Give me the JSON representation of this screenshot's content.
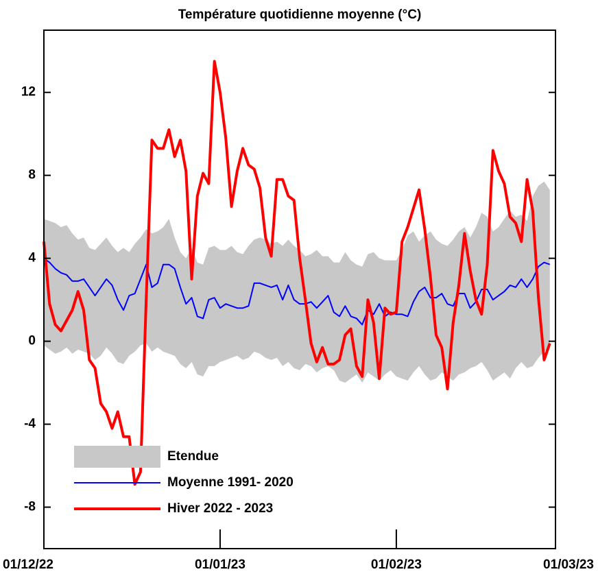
{
  "chart_data": {
    "type": "line",
    "title": "Température quotidienne moyenne (°C)",
    "x": [
      "01/12/22",
      "02/12/22",
      "03/12/22",
      "04/12/22",
      "05/12/22",
      "06/12/22",
      "07/12/22",
      "08/12/22",
      "09/12/22",
      "10/12/22",
      "11/12/22",
      "12/12/22",
      "13/12/22",
      "14/12/22",
      "15/12/22",
      "16/12/22",
      "17/12/22",
      "18/12/22",
      "19/12/22",
      "20/12/22",
      "21/12/22",
      "22/12/22",
      "23/12/22",
      "24/12/22",
      "25/12/22",
      "26/12/22",
      "27/12/22",
      "28/12/22",
      "29/12/22",
      "30/12/22",
      "31/12/22",
      "01/01/23",
      "02/01/23",
      "03/01/23",
      "04/01/23",
      "05/01/23",
      "06/01/23",
      "07/01/23",
      "08/01/23",
      "09/01/23",
      "10/01/23",
      "11/01/23",
      "12/01/23",
      "13/01/23",
      "14/01/23",
      "15/01/23",
      "16/01/23",
      "17/01/23",
      "18/01/23",
      "19/01/23",
      "20/01/23",
      "21/01/23",
      "22/01/23",
      "23/01/23",
      "24/01/23",
      "25/01/23",
      "26/01/23",
      "27/01/23",
      "28/01/23",
      "29/01/23",
      "30/01/23",
      "31/01/23",
      "01/02/23",
      "02/02/23",
      "03/02/23",
      "04/02/23",
      "05/02/23",
      "06/02/23",
      "07/02/23",
      "08/02/23",
      "09/02/23",
      "10/02/23",
      "11/02/23",
      "12/02/23",
      "13/02/23",
      "14/02/23",
      "15/02/23",
      "16/02/23",
      "17/02/23",
      "18/02/23",
      "19/02/23",
      "20/02/23",
      "21/02/23",
      "22/02/23",
      "23/02/23",
      "24/02/23",
      "25/02/23",
      "26/02/23",
      "27/02/23",
      "28/02/23"
    ],
    "xlim": [
      "01/12/22",
      "01/03/23"
    ],
    "xticks": [
      "01/12/22",
      "01/01/23",
      "01/02/23",
      "01/03/23"
    ],
    "ylim": [
      -10,
      15
    ],
    "yticks": [
      -8,
      -4,
      0,
      4,
      8,
      12
    ],
    "legend": "lower-left",
    "series": [
      {
        "name": "Etendue",
        "color": "#c8c8c8",
        "kind": "band",
        "high": [
          5.9,
          5.8,
          5.7,
          5.5,
          5.6,
          5.2,
          4.9,
          5.0,
          4.5,
          4.4,
          4.7,
          5.0,
          4.6,
          4.3,
          4.5,
          4.3,
          4.7,
          5.0,
          5.4,
          5.2,
          5.3,
          5.5,
          5.9,
          5.0,
          4.3,
          4.0,
          4.5,
          3.8,
          3.7,
          4.5,
          4.6,
          4.4,
          4.4,
          4.6,
          4.3,
          4.2,
          4.6,
          4.9,
          5.0,
          4.9,
          4.7,
          4.8,
          4.6,
          4.9,
          4.6,
          4.4,
          4.1,
          4.2,
          4.4,
          4.1,
          4.1,
          3.8,
          3.8,
          4.3,
          3.9,
          3.7,
          3.6,
          4.2,
          4.3,
          4.0,
          3.9,
          3.9,
          3.9,
          4.4,
          5.1,
          5.3,
          4.8,
          5.1,
          5.3,
          4.9,
          4.7,
          4.6,
          4.9,
          5.3,
          5.5,
          5.0,
          5.5,
          6.2,
          6.0,
          5.3,
          5.5,
          5.9,
          6.3,
          6.0,
          6.1,
          5.8,
          7.0,
          7.5,
          7.7,
          7.3
        ],
        "low": [
          -0.2,
          -0.4,
          -0.6,
          -0.5,
          -0.3,
          -0.6,
          -0.4,
          -0.5,
          -0.6,
          -0.9,
          -0.7,
          -0.3,
          -0.6,
          -1.0,
          -1.1,
          -0.7,
          -0.5,
          -0.2,
          -0.1,
          -0.5,
          -0.3,
          -0.5,
          -0.6,
          -0.7,
          -1.1,
          -1.3,
          -1.0,
          -1.6,
          -1.7,
          -1.2,
          -1.2,
          -1.0,
          -0.9,
          -0.8,
          -0.7,
          -0.9,
          -0.8,
          -0.5,
          -0.6,
          -0.8,
          -0.9,
          -0.8,
          -1.2,
          -1.0,
          -1.3,
          -1.4,
          -1.1,
          -1.2,
          -1.5,
          -1.3,
          -1.2,
          -1.4,
          -1.9,
          -2.0,
          -1.8,
          -1.6,
          -2.0,
          -1.5,
          -1.7,
          -1.9,
          -1.6,
          -1.4,
          -1.7,
          -1.8,
          -1.9,
          -1.5,
          -1.2,
          -1.6,
          -1.9,
          -1.8,
          -1.5,
          -1.7,
          -1.9,
          -1.6,
          -1.5,
          -1.3,
          -1.2,
          -1.0,
          -1.4,
          -1.9,
          -1.7,
          -1.5,
          -1.8,
          -1.3,
          -1.0,
          -1.3,
          -1.2,
          -0.8,
          -0.5,
          -0.3
        ]
      },
      {
        "name": "Moyenne 1991- 2020",
        "color": "#0000ff",
        "kind": "line",
        "width": 2,
        "values": [
          4.0,
          3.8,
          3.5,
          3.3,
          3.2,
          2.9,
          2.9,
          3.0,
          2.6,
          2.2,
          2.6,
          3.0,
          2.7,
          2.0,
          1.5,
          2.2,
          2.3,
          3.0,
          3.7,
          2.6,
          2.8,
          3.7,
          3.7,
          3.5,
          2.6,
          1.8,
          2.1,
          1.2,
          1.1,
          2.0,
          2.1,
          1.6,
          1.8,
          1.7,
          1.6,
          1.6,
          1.7,
          2.8,
          2.8,
          2.7,
          2.6,
          2.7,
          2.0,
          2.7,
          2.0,
          1.8,
          1.8,
          1.9,
          1.6,
          1.9,
          2.2,
          1.4,
          1.2,
          1.7,
          1.2,
          1.1,
          0.8,
          1.5,
          1.3,
          1.8,
          1.2,
          1.4,
          1.3,
          1.3,
          1.2,
          1.9,
          2.4,
          2.6,
          2.1,
          2.1,
          2.3,
          1.8,
          1.7,
          2.3,
          2.3,
          1.6,
          1.9,
          2.5,
          2.5,
          2.0,
          2.2,
          2.4,
          2.7,
          2.6,
          3.0,
          2.6,
          3.0,
          3.6,
          3.8,
          3.7
        ]
      },
      {
        "name": "Hiver 2022 - 2023",
        "color": "#ff0000",
        "kind": "line",
        "width": 4,
        "values": [
          4.8,
          1.8,
          0.8,
          0.5,
          1.0,
          1.5,
          2.4,
          1.5,
          -0.9,
          -1.3,
          -3.0,
          -3.4,
          -4.2,
          -3.4,
          -4.6,
          -4.6,
          -6.9,
          -6.3,
          2.0,
          9.7,
          9.3,
          9.3,
          10.2,
          8.9,
          9.7,
          8.2,
          3.0,
          7.0,
          8.1,
          7.6,
          13.5,
          12.0,
          9.8,
          6.5,
          8.2,
          9.3,
          8.5,
          8.3,
          7.4,
          5.0,
          4.1,
          7.8,
          7.8,
          7.0,
          6.8,
          4.0,
          2.0,
          -0.1,
          -1.0,
          -0.3,
          -1.1,
          -1.1,
          -0.9,
          0.3,
          0.6,
          -1.2,
          -1.7,
          2.0,
          0.9,
          -1.8,
          1.6,
          1.3,
          1.4,
          4.8,
          5.5,
          6.4,
          7.3,
          5.4,
          3.1,
          0.3,
          -0.3,
          -2.3,
          0.9,
          2.7,
          5.2,
          3.4,
          2.0,
          1.3,
          3.7,
          9.2,
          8.2,
          7.6,
          6.0,
          5.7,
          4.8,
          7.8,
          6.3,
          2.1,
          -0.9,
          -0.1
        ]
      }
    ]
  }
}
